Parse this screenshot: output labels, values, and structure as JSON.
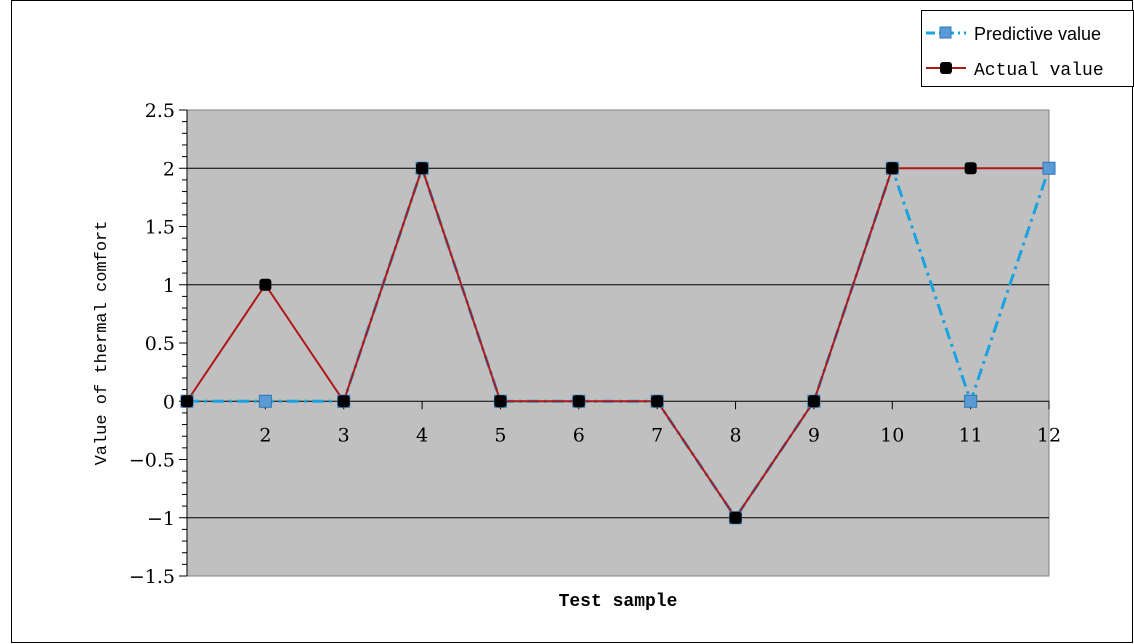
{
  "chart_data": {
    "type": "line",
    "xlabel": "Test sample",
    "ylabel": "Value of thermal comfort",
    "ylim": [
      -1.5,
      2.5
    ],
    "yticks": [
      2.5,
      2,
      1.5,
      1,
      0.5,
      0,
      -0.5,
      -1,
      -1.5
    ],
    "ytick_labels": [
      "2.5",
      "2",
      "1.5",
      "1",
      "0.5",
      "0",
      "−0.5",
      "−1",
      "−1.5"
    ],
    "x": [
      1,
      2,
      3,
      4,
      5,
      6,
      7,
      8,
      9,
      10,
      11,
      12
    ],
    "xtick_labels": [
      "2",
      "3",
      "4",
      "5",
      "6",
      "7",
      "8",
      "9",
      "10",
      "11",
      "12"
    ],
    "grid": "horizontal",
    "legend_position": "top-right",
    "series": [
      {
        "name": "Predictive value",
        "color": "#1aa3e0",
        "marker_color": "#5b9bd5",
        "line_style": "dash-dot",
        "values": [
          0,
          0,
          0,
          2,
          0,
          0,
          0,
          -1,
          0,
          2,
          0,
          2
        ]
      },
      {
        "name": "Actual value",
        "color": "#b01818",
        "marker_color": "#000000",
        "line_style": "solid",
        "values": [
          0,
          1,
          0,
          2,
          0,
          0,
          0,
          -1,
          0,
          2,
          2,
          2
        ]
      }
    ]
  }
}
